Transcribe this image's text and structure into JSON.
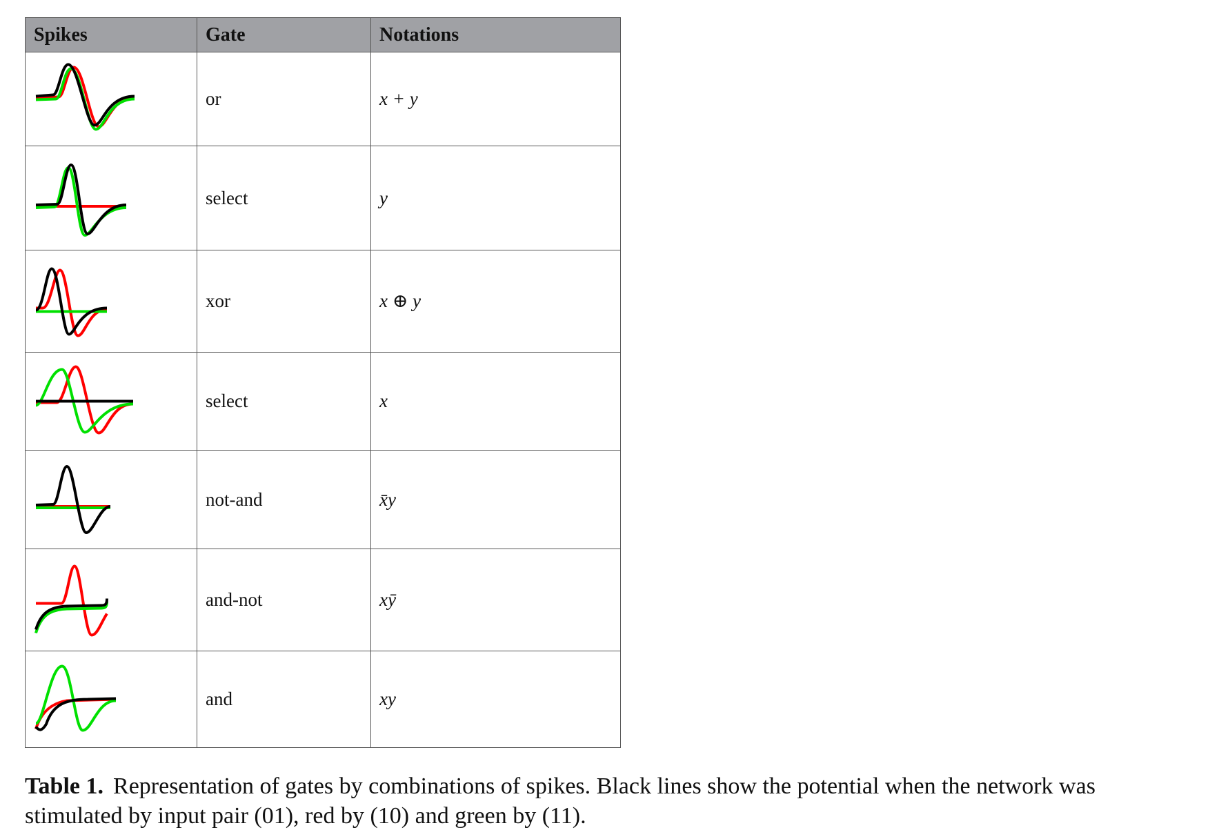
{
  "table": {
    "headers": [
      "Spikes",
      "Gate",
      "Notations"
    ],
    "rows": [
      {
        "gate": "or",
        "notation": "x + y"
      },
      {
        "gate": "select",
        "notation": "y"
      },
      {
        "gate": "xor",
        "notation": "x ⊕ y"
      },
      {
        "gate": "select",
        "notation": "x"
      },
      {
        "gate": "not-and",
        "notation": "x̄y"
      },
      {
        "gate": "and-not",
        "notation": "xȳ"
      },
      {
        "gate": "and",
        "notation": "xy"
      }
    ]
  },
  "trace_colors": {
    "input_01": "#000000",
    "input_10": "#ff0000",
    "input_11": "#00e000"
  },
  "caption": {
    "label": "Table 1.",
    "text": "Representation of gates by combinations of spikes. Black lines show the potential when the network was stimulated by input pair (01), red by (10) and green by (11)."
  }
}
